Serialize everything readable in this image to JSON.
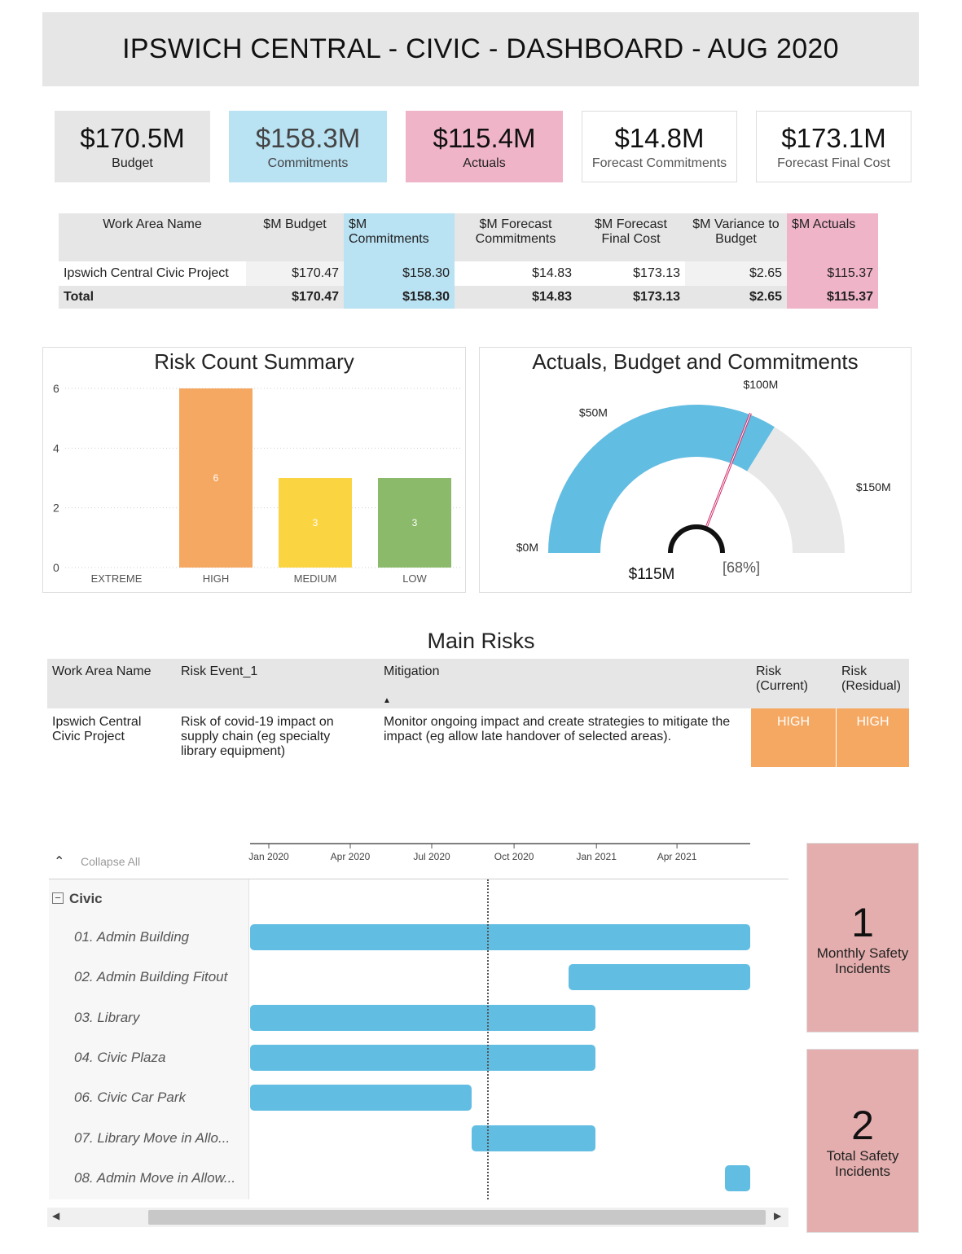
{
  "title": "IPSWICH CENTRAL - CIVIC - DASHBOARD - AUG 2020",
  "kpis": [
    {
      "value": "$170.5M",
      "label": "Budget"
    },
    {
      "value": "$158.3M",
      "label": "Commitments"
    },
    {
      "value": "$115.4M",
      "label": "Actuals"
    },
    {
      "value": "$14.8M",
      "label": "Forecast Commitments"
    },
    {
      "value": "$173.1M",
      "label": "Forecast Final Cost"
    }
  ],
  "summary_table": {
    "headers": [
      "Work Area Name",
      "$M Budget",
      "$M Commitments",
      "$M Forecast Commitments",
      "$M Forecast Final Cost",
      "$M Variance to Budget",
      "$M Actuals"
    ],
    "rows": [
      [
        "Ipswich Central Civic Project",
        "$170.47",
        "$158.30",
        "$14.83",
        "$173.13",
        "$2.65",
        "$115.37"
      ],
      [
        "Total",
        "$170.47",
        "$158.30",
        "$14.83",
        "$173.13",
        "$2.65",
        "$115.37"
      ]
    ]
  },
  "colors": {
    "header_grey": "#e6e6e6",
    "blue_accent": "#b9e2f3",
    "pink_accent": "#f0b4c8",
    "gauge_blue": "#62bde3",
    "high": "#f5a862",
    "medium": "#fbd441",
    "low": "#8bba6a",
    "safety": "#e5aeae"
  },
  "chart_data": [
    {
      "type": "bar",
      "title": "Risk Count Summary",
      "categories": [
        "EXTREME",
        "HIGH",
        "MEDIUM",
        "LOW"
      ],
      "values": [
        0,
        6,
        3,
        3
      ],
      "data_labels": [
        "",
        "6",
        "3",
        "3"
      ],
      "bar_colors": [
        "#f5a862",
        "#f5a862",
        "#fbd441",
        "#8bba6a"
      ],
      "ylim": [
        0,
        6
      ],
      "yticks": [
        0,
        2,
        4,
        6
      ],
      "grid": true
    },
    {
      "type": "gauge",
      "title": "Actuals, Budget and Commitments",
      "min": 0,
      "max": 170,
      "value": 115,
      "target": 105,
      "value_label": "$115M",
      "percent_label": "[68%]",
      "tick_labels": [
        "$0M",
        "$50M",
        "$100M",
        "$150M"
      ],
      "ticks": [
        0,
        50,
        100,
        150
      ]
    },
    {
      "type": "gantt",
      "x_ticks": [
        "Jan 2020",
        "Apr 2020",
        "Jul 2020",
        "Oct 2020",
        "Jan 2021",
        "Apr 2021"
      ],
      "x_tick_dates": [
        "2020-01-01",
        "2020-04-01",
        "2020-07-01",
        "2020-10-01",
        "2021-01-01",
        "2021-04-01"
      ],
      "today": "2020-09-01",
      "group": "Civic",
      "tasks": [
        {
          "name": "01. Admin Building",
          "start": "2019-12-01",
          "end": "2021-06-30"
        },
        {
          "name": "02. Admin Building Fitout",
          "start": "2020-12-01",
          "end": "2021-06-30"
        },
        {
          "name": "03. Library",
          "start": "2019-12-01",
          "end": "2020-12-31"
        },
        {
          "name": "04. Civic Plaza",
          "start": "2019-12-01",
          "end": "2020-12-31"
        },
        {
          "name": "06. Civic Car Park",
          "start": "2019-12-01",
          "end": "2020-08-15"
        },
        {
          "name": "07. Library Move in Allo...",
          "start": "2020-08-15",
          "end": "2020-12-31"
        },
        {
          "name": "08. Admin Move in Allow...",
          "start": "2021-05-25",
          "end": "2021-06-30"
        }
      ]
    }
  ],
  "main_risks": {
    "title": "Main Risks",
    "headers": [
      "Work Area Name",
      "Risk Event_1",
      "Mitigation",
      "Risk (Current)",
      "Risk (Residual)"
    ],
    "row": {
      "work_area": "Ipswich Central Civic Project",
      "risk_event": "Risk of covid-19 impact on supply chain (eg specialty library equipment)",
      "mitigation": "Monitor ongoing impact and create strategies to mitigate the impact (eg allow late handover of selected areas).",
      "current": "HIGH",
      "residual": "HIGH"
    }
  },
  "gantt_ui": {
    "collapse_label": "Collapse All"
  },
  "safety": [
    {
      "value": "1",
      "label": "Monthly  Safety\nIncidents"
    },
    {
      "value": "2",
      "label": "Total Safety\nIncidents"
    }
  ]
}
